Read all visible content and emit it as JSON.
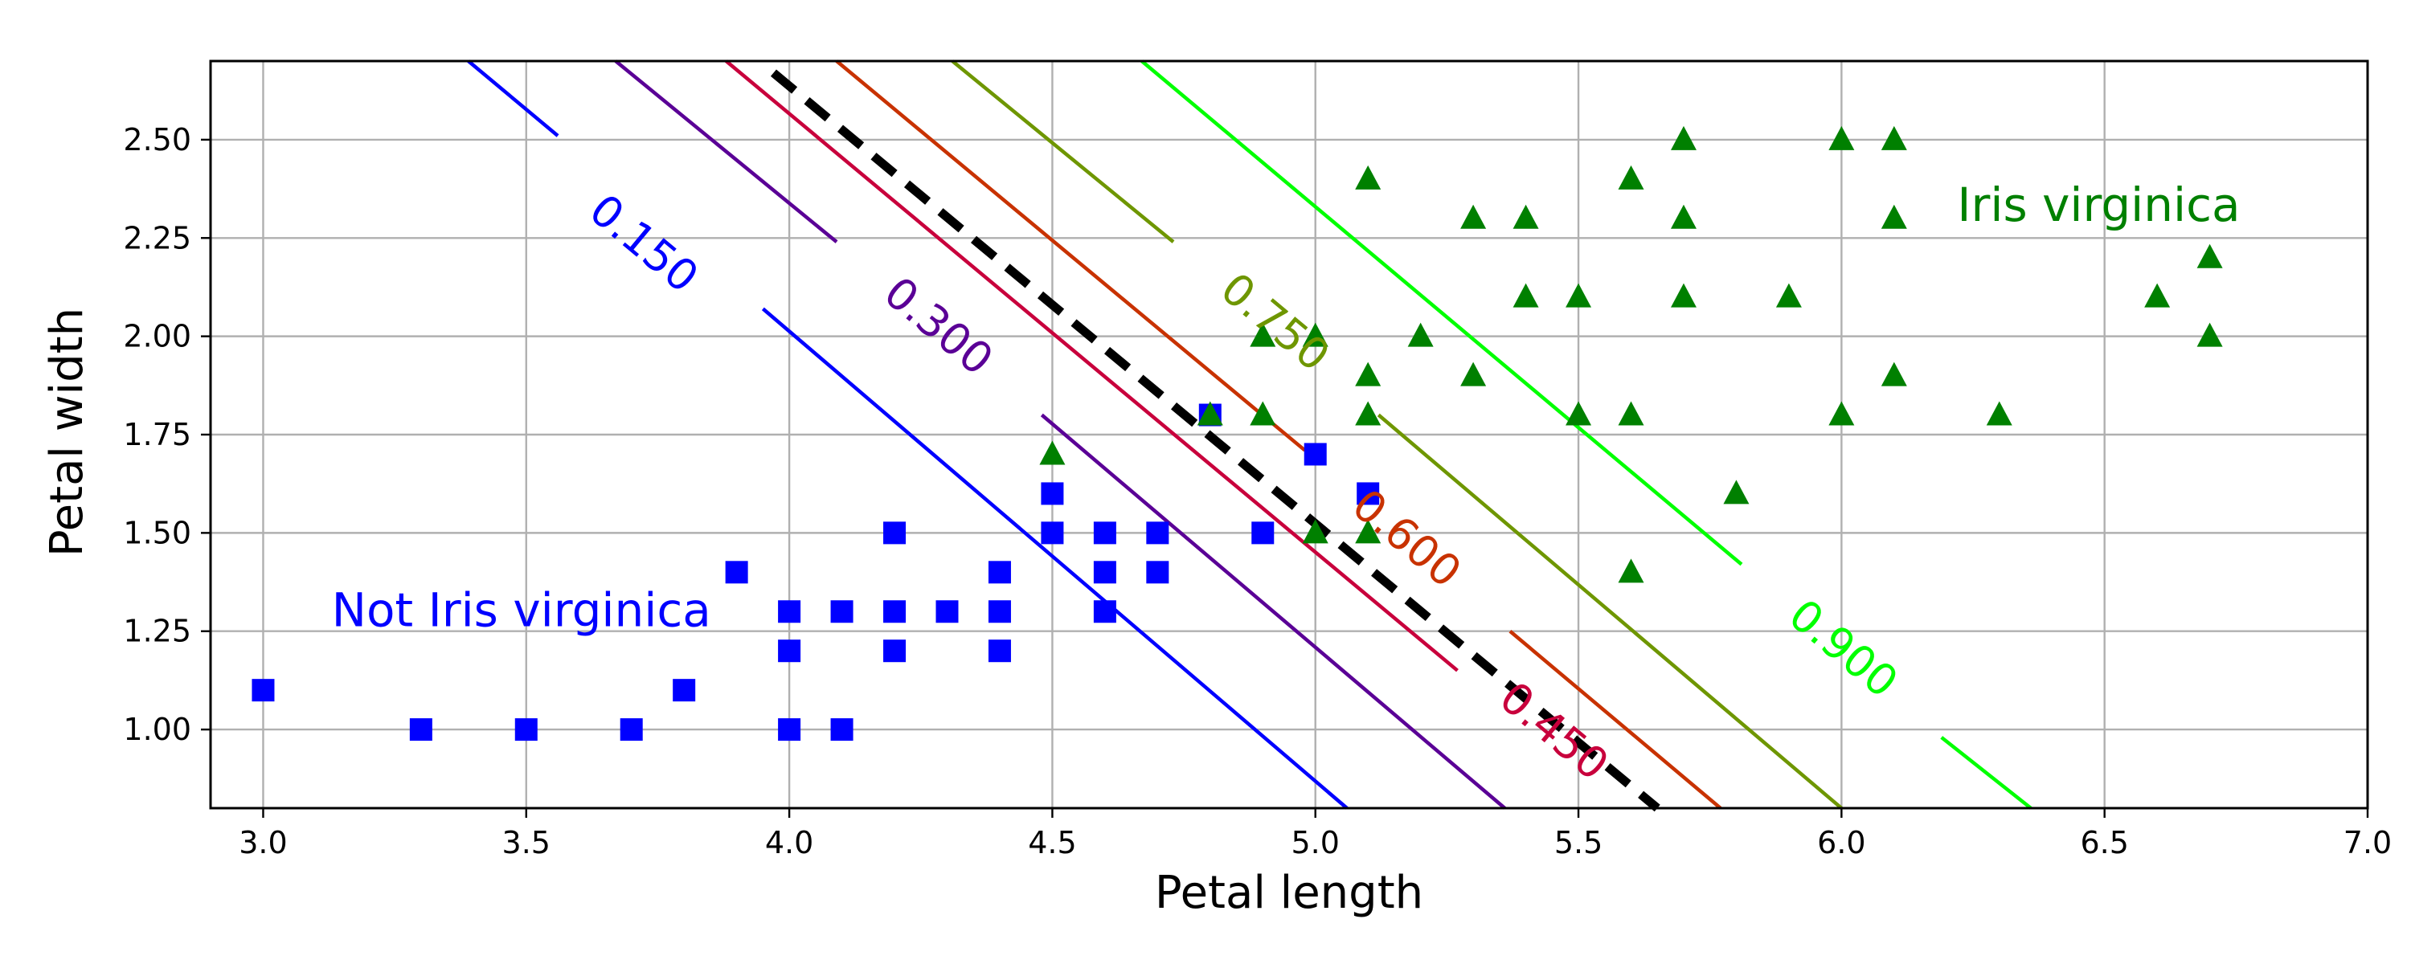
{
  "chart_data": {
    "type": "scatter",
    "title": "",
    "xlabel": "Petal length",
    "ylabel": "Petal width",
    "xlim": [
      2.9,
      7.0
    ],
    "ylim": [
      0.8,
      2.7
    ],
    "xticks": [
      3.0,
      3.5,
      4.0,
      4.5,
      5.0,
      5.5,
      6.0,
      6.5,
      7.0
    ],
    "yticks": [
      1.0,
      1.25,
      1.5,
      1.75,
      2.0,
      2.25,
      2.5
    ],
    "xtick_labels": [
      "3.0",
      "3.5",
      "4.0",
      "4.5",
      "5.0",
      "5.5",
      "6.0",
      "6.5",
      "7.0"
    ],
    "ytick_labels": [
      "1.00",
      "1.25",
      "1.50",
      "1.75",
      "2.00",
      "2.25",
      "2.50"
    ],
    "grid": true,
    "series": [
      {
        "marker": "square",
        "color": "#0000ff",
        "points": [
          [
            3.0,
            1.1
          ],
          [
            3.3,
            1.0
          ],
          [
            3.5,
            1.0
          ],
          [
            3.7,
            1.0
          ],
          [
            3.8,
            1.1
          ],
          [
            3.9,
            1.4
          ],
          [
            4.0,
            1.0
          ],
          [
            4.0,
            1.2
          ],
          [
            4.0,
            1.3
          ],
          [
            4.1,
            1.0
          ],
          [
            4.1,
            1.3
          ],
          [
            4.2,
            1.2
          ],
          [
            4.2,
            1.3
          ],
          [
            4.2,
            1.5
          ],
          [
            4.3,
            1.3
          ],
          [
            4.4,
            1.2
          ],
          [
            4.4,
            1.3
          ],
          [
            4.4,
            1.4
          ],
          [
            4.5,
            1.5
          ],
          [
            4.5,
            1.6
          ],
          [
            4.6,
            1.3
          ],
          [
            4.6,
            1.4
          ],
          [
            4.6,
            1.5
          ],
          [
            4.7,
            1.4
          ],
          [
            4.7,
            1.5
          ],
          [
            4.8,
            1.8
          ],
          [
            4.9,
            1.5
          ],
          [
            5.0,
            1.7
          ],
          [
            5.1,
            1.6
          ]
        ]
      },
      {
        "marker": "triangle",
        "color": "#008000",
        "points": [
          [
            4.5,
            1.7
          ],
          [
            4.8,
            1.8
          ],
          [
            4.9,
            1.8
          ],
          [
            4.9,
            2.0
          ],
          [
            5.0,
            1.5
          ],
          [
            5.0,
            2.0
          ],
          [
            5.1,
            1.5
          ],
          [
            5.1,
            1.8
          ],
          [
            5.1,
            1.9
          ],
          [
            5.1,
            2.4
          ],
          [
            5.2,
            2.0
          ],
          [
            5.3,
            1.9
          ],
          [
            5.3,
            2.3
          ],
          [
            5.4,
            2.1
          ],
          [
            5.4,
            2.3
          ],
          [
            5.5,
            1.8
          ],
          [
            5.5,
            2.1
          ],
          [
            5.6,
            1.4
          ],
          [
            5.6,
            1.8
          ],
          [
            5.6,
            2.4
          ],
          [
            5.7,
            2.1
          ],
          [
            5.7,
            2.3
          ],
          [
            5.7,
            2.5
          ],
          [
            5.8,
            1.6
          ],
          [
            5.9,
            2.1
          ],
          [
            6.0,
            1.8
          ],
          [
            6.0,
            2.5
          ],
          [
            6.1,
            1.9
          ],
          [
            6.1,
            2.3
          ],
          [
            6.1,
            2.5
          ],
          [
            6.3,
            1.8
          ],
          [
            6.6,
            2.1
          ],
          [
            6.7,
            2.0
          ],
          [
            6.7,
            2.2
          ]
        ]
      }
    ],
    "contours": [
      {
        "label": "0.150",
        "color": "#0000ff",
        "segments": [
          [
            [
              3.39,
              2.7
            ],
            [
              3.56,
              2.51
            ]
          ],
          [
            [
              3.95,
              2.07
            ],
            [
              5.06,
              0.8
            ]
          ]
        ],
        "label_at": [
          3.72,
          2.23
        ]
      },
      {
        "label": "0.300",
        "color": "#5a0096",
        "segments": [
          [
            [
              3.67,
              2.7
            ],
            [
              4.09,
              2.24
            ]
          ],
          [
            [
              4.48,
              1.8
            ],
            [
              5.36,
              0.8
            ]
          ]
        ],
        "label_at": [
          4.28,
          2.02
        ]
      },
      {
        "label": "0.450",
        "color": "#c8003c",
        "segments": [
          [
            [
              3.88,
              2.7
            ],
            [
              5.27,
              1.15
            ]
          ]
        ],
        "label_at": [
          5.45,
          0.99
        ]
      },
      {
        "label": "0.600",
        "color": "#c83200",
        "segments": [
          [
            [
              4.09,
              2.7
            ],
            [
              4.98,
              1.71
            ]
          ],
          [
            [
              5.37,
              1.25
            ],
            [
              5.77,
              0.8
            ]
          ]
        ],
        "label_at": [
          5.17,
          1.48
        ]
      },
      {
        "label": "0.750",
        "color": "#6e9600",
        "segments": [
          [
            [
              4.31,
              2.7
            ],
            [
              4.73,
              2.24
            ]
          ],
          [
            [
              5.12,
              1.8
            ],
            [
              6.0,
              0.8
            ]
          ]
        ],
        "label_at": [
          4.92,
          2.03
        ]
      },
      {
        "label": "0.900",
        "color": "#00ff00",
        "segments": [
          [
            [
              4.67,
              2.7
            ],
            [
              5.81,
              1.42
            ]
          ],
          [
            [
              6.19,
              0.98
            ],
            [
              6.36,
              0.8
            ]
          ]
        ],
        "label_at": [
          6.0,
          1.2
        ]
      }
    ],
    "decision_boundary": {
      "color": "#000000",
      "style": "dashed",
      "points": [
        [
          3.97,
          2.67
        ],
        [
          5.65,
          0.8
        ]
      ]
    },
    "annotations": [
      {
        "text": "Not Iris virginica",
        "color": "#0000ff",
        "at": [
          3.13,
          1.3
        ]
      },
      {
        "text": "Iris virginica",
        "color": "#008000",
        "at": [
          6.22,
          2.33
        ]
      }
    ]
  }
}
